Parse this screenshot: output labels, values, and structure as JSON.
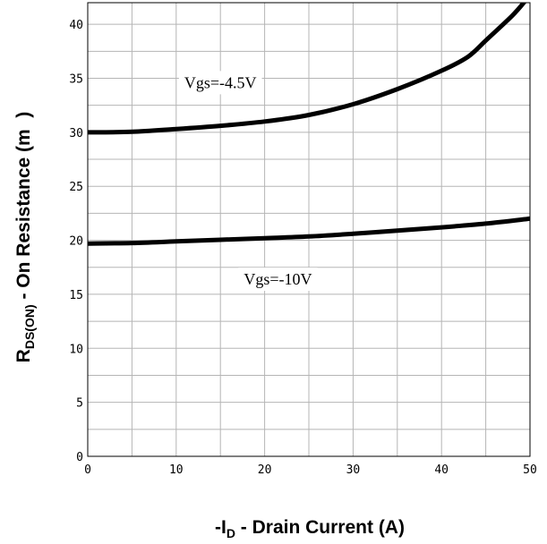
{
  "chart_data": {
    "type": "line",
    "title": "",
    "xlabel": {
      "prefix": "-I",
      "subscript": "D",
      "suffix": " - Drain Current (A)"
    },
    "ylabel": {
      "prefix": "R",
      "subscript": "DS(ON)",
      "suffix": " - On Resistance (m   )"
    },
    "xlim": [
      0,
      50
    ],
    "ylim": [
      0,
      42
    ],
    "x_ticks": [
      0,
      10,
      20,
      30,
      40,
      50
    ],
    "y_ticks": [
      0,
      5,
      10,
      15,
      20,
      25,
      30,
      35,
      40
    ],
    "grid": true,
    "series": [
      {
        "name": "Vgs=-4.5V",
        "x": [
          0,
          5,
          10,
          15,
          20,
          25,
          30,
          35,
          40,
          43,
          45,
          48,
          49.5
        ],
        "y": [
          30.0,
          30.05,
          30.3,
          30.6,
          31.0,
          31.6,
          32.6,
          34.0,
          35.7,
          37.0,
          38.5,
          40.8,
          42.2
        ]
      },
      {
        "name": "Vgs=-10V",
        "x": [
          0,
          5,
          10,
          15,
          20,
          25,
          30,
          35,
          40,
          45,
          50
        ],
        "y": [
          19.7,
          19.75,
          19.9,
          20.05,
          20.2,
          20.35,
          20.6,
          20.9,
          21.2,
          21.55,
          22.0
        ]
      }
    ],
    "annotations": [
      {
        "text": "Vgs=-4.5V",
        "series": 0,
        "at_x": 15,
        "at_y": 34.1
      },
      {
        "text": "Vgs=-10V",
        "series": 1,
        "at_x": 21.5,
        "at_y": 15.9
      }
    ]
  }
}
